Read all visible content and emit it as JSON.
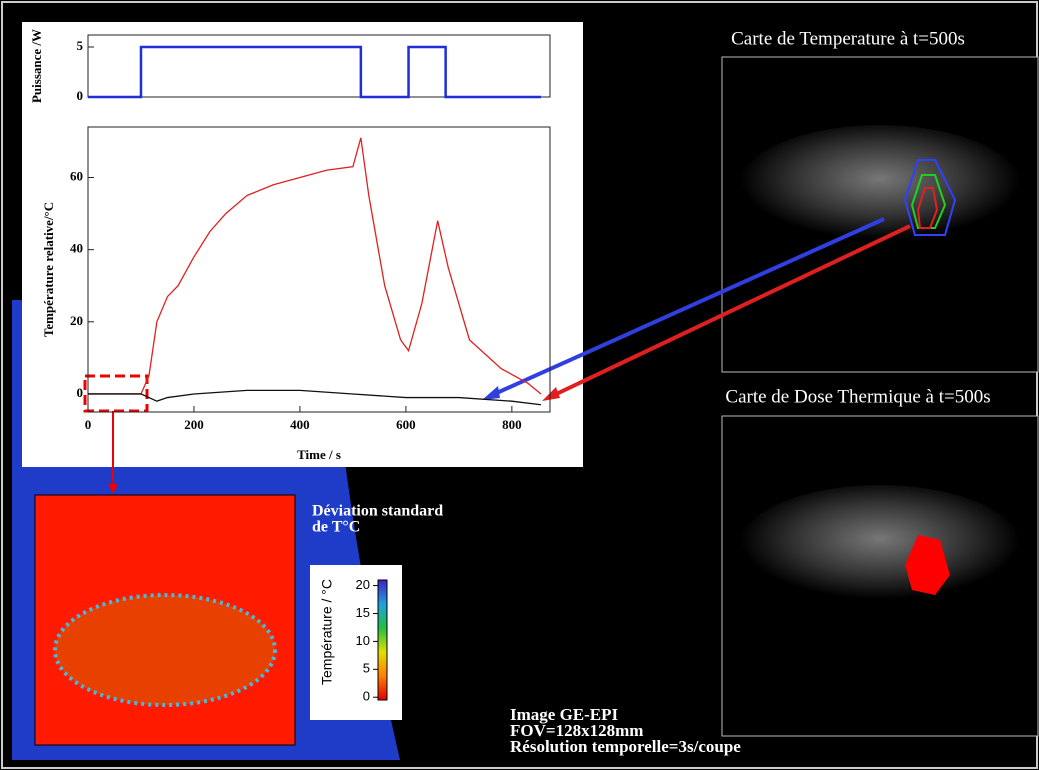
{
  "chart_data": [
    {
      "type": "line",
      "ylabel": "Puissance /W",
      "xlim": [
        0,
        872
      ],
      "ylim": [
        0,
        6.2
      ],
      "yticks": [
        0,
        5
      ],
      "series": [
        {
          "color": "#1f2fd6",
          "x": [
            0,
            100,
            100,
            515,
            515,
            605,
            605,
            675,
            675,
            855
          ],
          "values": [
            0,
            0,
            5,
            5,
            0,
            0,
            5,
            5,
            0,
            0
          ]
        }
      ]
    },
    {
      "type": "line",
      "ylabel": "Température relative/°C",
      "xlabel": "Time / s",
      "xlim": [
        0,
        872
      ],
      "ylim": [
        -5,
        74
      ],
      "xticks": [
        0,
        200,
        400,
        600,
        800
      ],
      "yticks": [
        0,
        20,
        40,
        60
      ],
      "series": [
        {
          "color": "#e02020",
          "x": [
            0,
            100,
            115,
            130,
            150,
            170,
            200,
            230,
            260,
            300,
            350,
            400,
            450,
            500,
            515,
            530,
            560,
            590,
            605,
            630,
            660,
            680,
            720,
            780,
            830,
            855
          ],
          "values": [
            0,
            0,
            5,
            20,
            27,
            30,
            38,
            45,
            50,
            55,
            58,
            60,
            62,
            63,
            71,
            55,
            30,
            15,
            12,
            25,
            48,
            35,
            15,
            7,
            3,
            0
          ]
        },
        {
          "color": "#111111",
          "x": [
            0,
            100,
            130,
            150,
            200,
            300,
            400,
            500,
            600,
            700,
            800,
            855
          ],
          "values": [
            0,
            0,
            -2,
            -1,
            0,
            1,
            1,
            0,
            -1,
            -1,
            -2,
            -3
          ]
        }
      ]
    },
    {
      "type": "colorbar",
      "ylabel": "Température / °C",
      "ylim": [
        -0.5,
        21
      ],
      "yticks": [
        0,
        5,
        10,
        15,
        20
      ]
    }
  ],
  "annotations": {
    "map_temp": "Carte de Temperature à t=500s",
    "map_dose": "Carte de Dose Thermique à t=500s",
    "std_line1": "Déviation standard",
    "std_line2": "de T°C",
    "info1": "Image GE-EPI",
    "info2": "FOV=128x128mm",
    "info3": "Résolution temporelle=3s/coupe"
  }
}
